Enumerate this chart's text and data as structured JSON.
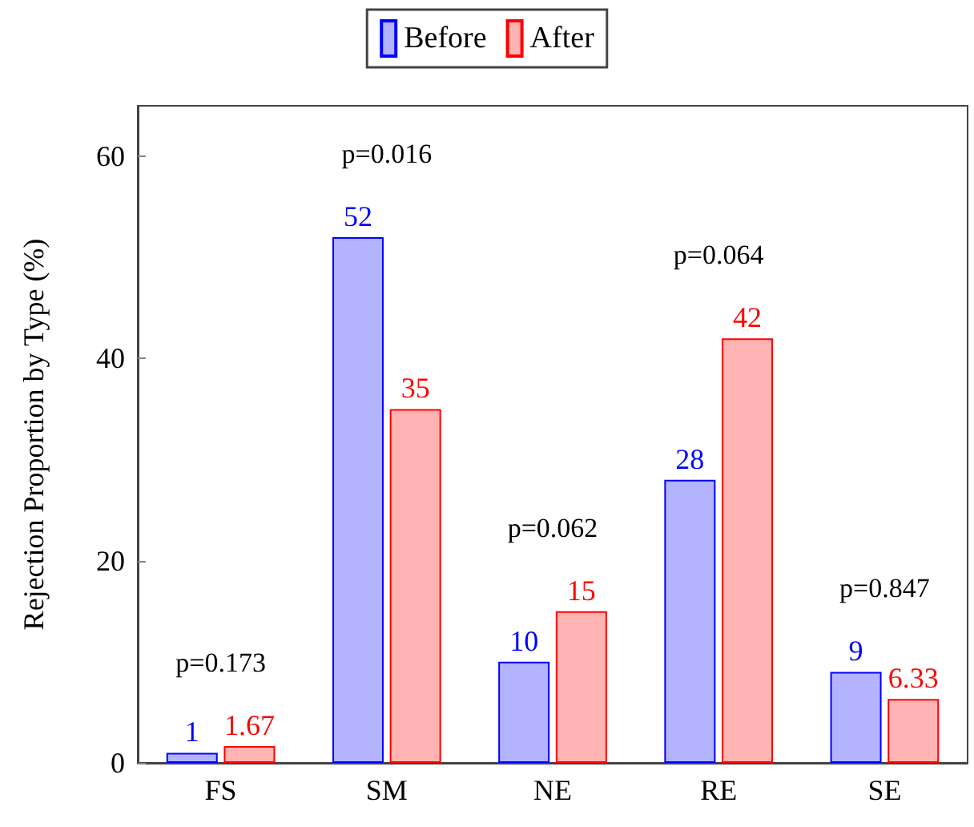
{
  "chart_data": {
    "type": "bar",
    "ylabel": "Rejection Proportion by Type (%)",
    "categories": [
      "FS",
      "SM",
      "NE",
      "RE",
      "SE"
    ],
    "series": [
      {
        "name": "Before",
        "color": "#b3b3ff",
        "values": [
          1,
          52,
          10,
          28,
          9
        ]
      },
      {
        "name": "After",
        "color": "#ffb3b3",
        "values": [
          1.67,
          35,
          15,
          42,
          6.33
        ]
      }
    ],
    "data_labels": true,
    "ylim": [
      0,
      65
    ],
    "yticks": [
      0,
      20,
      40,
      60
    ],
    "grid": false,
    "legend": "top",
    "annotations": [
      "p=0.173",
      "p=0.016",
      "p=0.062",
      "p=0.064",
      "p=0.847"
    ]
  }
}
